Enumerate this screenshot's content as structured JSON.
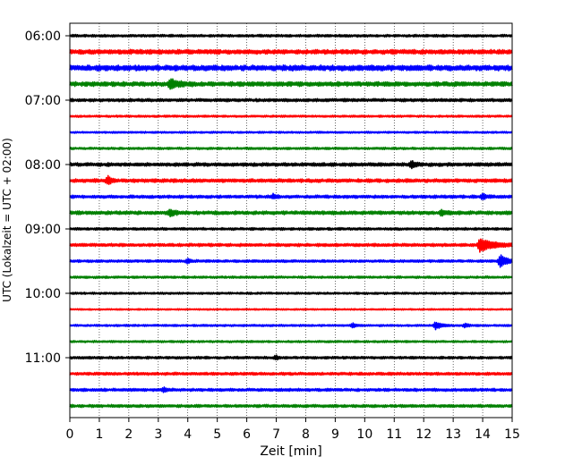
{
  "chart_data": {
    "type": "line",
    "title": "",
    "xlabel": "Zeit  [min]",
    "ylabel": "UTC (Lokalzeit = UTC + 02:00)",
    "xlim": [
      0,
      15
    ],
    "x_ticks": [
      0,
      1,
      2,
      3,
      4,
      5,
      6,
      7,
      8,
      9,
      10,
      11,
      12,
      13,
      14,
      15
    ],
    "x_tick_labels": [
      "0",
      "1",
      "2",
      "3",
      "4",
      "5",
      "6",
      "7",
      "8",
      "9",
      "10",
      "11",
      "12",
      "13",
      "14",
      "15"
    ],
    "y_tick_labels": [
      "06:00",
      "07:00",
      "08:00",
      "09:00",
      "10:00",
      "11:00"
    ],
    "y_tick_rows": [
      0,
      4,
      8,
      12,
      16,
      20
    ],
    "grid": {
      "x": true,
      "y": false,
      "style": "dotted"
    },
    "colors": [
      "#000000",
      "#ff0000",
      "#0000ff",
      "#008000"
    ],
    "traces": [
      {
        "start": "06:00",
        "color": "#000000",
        "base_amp": 0.25,
        "events": []
      },
      {
        "start": "06:15",
        "color": "#ff0000",
        "base_amp": 0.45,
        "events": []
      },
      {
        "start": "06:30",
        "color": "#0000ff",
        "base_amp": 0.55,
        "events": []
      },
      {
        "start": "06:45",
        "color": "#008000",
        "base_amp": 0.45,
        "events": [
          {
            "t": 3.4,
            "amp": 1.1,
            "dur": 0.9
          }
        ]
      },
      {
        "start": "07:00",
        "color": "#000000",
        "base_amp": 0.3,
        "events": []
      },
      {
        "start": "07:15",
        "color": "#ff0000",
        "base_amp": 0.2,
        "events": []
      },
      {
        "start": "07:30",
        "color": "#0000ff",
        "base_amp": 0.18,
        "events": []
      },
      {
        "start": "07:45",
        "color": "#008000",
        "base_amp": 0.22,
        "events": []
      },
      {
        "start": "08:00",
        "color": "#000000",
        "base_amp": 0.35,
        "events": [
          {
            "t": 11.6,
            "amp": 0.9,
            "dur": 0.4
          }
        ]
      },
      {
        "start": "08:15",
        "color": "#ff0000",
        "base_amp": 0.35,
        "events": [
          {
            "t": 1.3,
            "amp": 1.3,
            "dur": 0.3
          }
        ]
      },
      {
        "start": "08:30",
        "color": "#0000ff",
        "base_amp": 0.3,
        "events": [
          {
            "t": 6.9,
            "amp": 0.7,
            "dur": 0.3
          },
          {
            "t": 14.0,
            "amp": 0.7,
            "dur": 0.4
          }
        ]
      },
      {
        "start": "08:45",
        "color": "#008000",
        "base_amp": 0.35,
        "events": [
          {
            "t": 3.4,
            "amp": 0.9,
            "dur": 0.5
          },
          {
            "t": 12.6,
            "amp": 0.7,
            "dur": 0.5
          }
        ]
      },
      {
        "start": "09:00",
        "color": "#000000",
        "base_amp": 0.25,
        "events": []
      },
      {
        "start": "09:15",
        "color": "#ff0000",
        "base_amp": 0.3,
        "events": [
          {
            "t": 13.9,
            "amp": 1.9,
            "dur": 1.2
          }
        ]
      },
      {
        "start": "09:30",
        "color": "#0000ff",
        "base_amp": 0.25,
        "events": [
          {
            "t": 4.0,
            "amp": 0.6,
            "dur": 0.3
          },
          {
            "t": 14.6,
            "amp": 1.8,
            "dur": 0.6
          }
        ]
      },
      {
        "start": "09:45",
        "color": "#008000",
        "base_amp": 0.22,
        "events": []
      },
      {
        "start": "10:00",
        "color": "#000000",
        "base_amp": 0.2,
        "events": []
      },
      {
        "start": "10:15",
        "color": "#ff0000",
        "base_amp": 0.15,
        "events": []
      },
      {
        "start": "10:30",
        "color": "#0000ff",
        "base_amp": 0.2,
        "events": [
          {
            "t": 9.6,
            "amp": 0.6,
            "dur": 0.3
          },
          {
            "t": 12.4,
            "amp": 1.0,
            "dur": 0.6
          },
          {
            "t": 13.4,
            "amp": 0.6,
            "dur": 0.3
          }
        ]
      },
      {
        "start": "10:45",
        "color": "#008000",
        "base_amp": 0.2,
        "events": []
      },
      {
        "start": "11:00",
        "color": "#000000",
        "base_amp": 0.25,
        "events": [
          {
            "t": 7.0,
            "amp": 0.5,
            "dur": 0.2
          }
        ]
      },
      {
        "start": "11:15",
        "color": "#ff0000",
        "base_amp": 0.28,
        "events": []
      },
      {
        "start": "11:30",
        "color": "#0000ff",
        "base_amp": 0.28,
        "events": [
          {
            "t": 3.2,
            "amp": 0.6,
            "dur": 0.3
          }
        ]
      },
      {
        "start": "11:45",
        "color": "#008000",
        "base_amp": 0.28,
        "events": []
      }
    ]
  }
}
